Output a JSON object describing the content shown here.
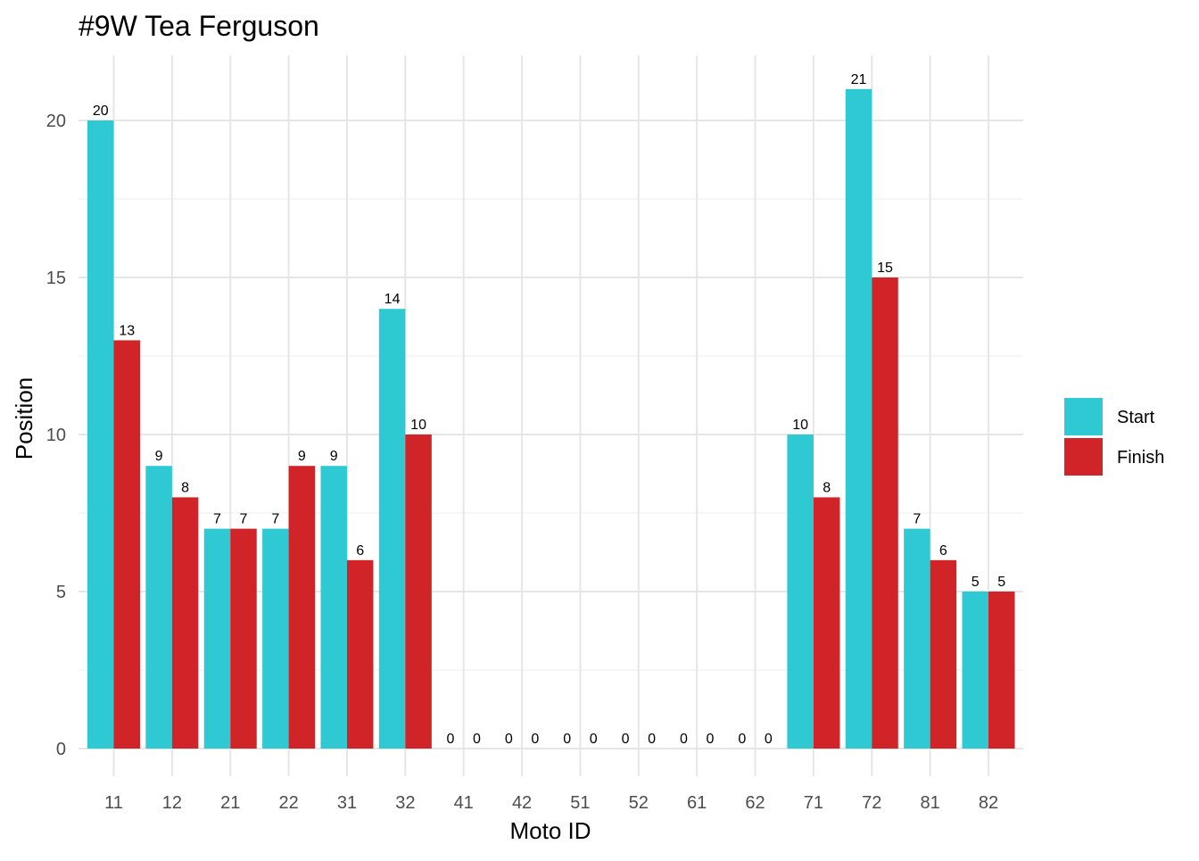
{
  "chart_data": {
    "type": "bar",
    "title": "#9W Tea Ferguson",
    "xlabel": "Moto ID",
    "ylabel": "Position",
    "categories": [
      "11",
      "12",
      "21",
      "22",
      "31",
      "32",
      "41",
      "42",
      "51",
      "52",
      "61",
      "62",
      "71",
      "72",
      "81",
      "82"
    ],
    "series": [
      {
        "name": "Start",
        "color": "#2ec9d3",
        "values": [
          20,
          9,
          7,
          7,
          9,
          14,
          0,
          0,
          0,
          0,
          0,
          0,
          10,
          21,
          7,
          5
        ]
      },
      {
        "name": "Finish",
        "color": "#d12429",
        "values": [
          13,
          8,
          7,
          9,
          6,
          10,
          0,
          0,
          0,
          0,
          0,
          0,
          8,
          15,
          6,
          5
        ]
      }
    ],
    "ylim": [
      0,
      22
    ],
    "yticks": [
      0,
      5,
      10,
      15,
      20
    ],
    "grid": true,
    "legend_position": "right",
    "data_labels": true
  }
}
